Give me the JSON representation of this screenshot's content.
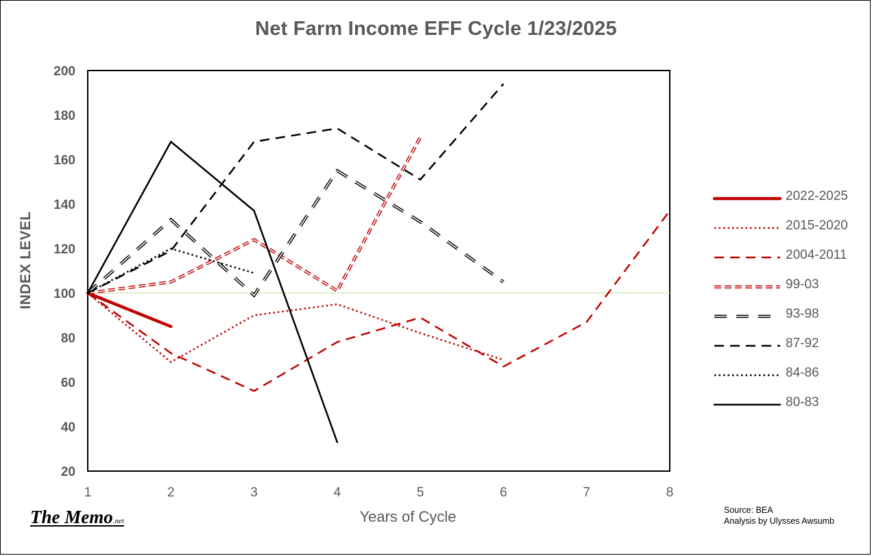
{
  "chart_data": {
    "type": "line",
    "title": "Net Farm Income EFF Cycle 1/23/2025",
    "xlabel": "Years of Cycle",
    "ylabel": "INDEX LEVEL",
    "xlim": [
      1,
      8
    ],
    "ylim": [
      20,
      200
    ],
    "x_ticks": [
      1,
      2,
      3,
      4,
      5,
      6,
      7,
      8
    ],
    "y_ticks": [
      20,
      40,
      60,
      80,
      100,
      120,
      140,
      160,
      180,
      200
    ],
    "grid": false,
    "reference_line": {
      "value": 100,
      "color": "#92d050"
    },
    "legend_position": "right",
    "series": [
      {
        "name": "2022-2025",
        "color": "#c00000",
        "style": "solid-thick",
        "x": [
          1,
          2
        ],
        "values": [
          100,
          85
        ]
      },
      {
        "name": "2015-2020",
        "color": "#c00000",
        "style": "dotted",
        "x": [
          1,
          2,
          3,
          4,
          5,
          6
        ],
        "values": [
          100,
          69,
          90,
          95,
          82,
          70
        ]
      },
      {
        "name": "2004-2011",
        "color": "#c00000",
        "style": "dashed",
        "x": [
          1,
          2,
          3,
          4,
          5,
          6,
          7,
          8
        ],
        "values": [
          100,
          73,
          56,
          78,
          89,
          67,
          87,
          137
        ]
      },
      {
        "name": "99-03",
        "color": "#c00000",
        "style": "double-dash",
        "x": [
          1,
          2,
          3,
          4,
          5
        ],
        "values": [
          100,
          105,
          124,
          101,
          170
        ]
      },
      {
        "name": "93-98",
        "color": "#000000",
        "style": "double-long-dash",
        "x": [
          1,
          2,
          3,
          4,
          5,
          6
        ],
        "values": [
          100,
          133,
          99,
          155,
          132,
          105
        ]
      },
      {
        "name": "87-92",
        "color": "#000000",
        "style": "dashed",
        "x": [
          1,
          2,
          3,
          4,
          5,
          6
        ],
        "values": [
          100,
          119,
          168,
          174,
          151,
          194
        ]
      },
      {
        "name": "84-86",
        "color": "#000000",
        "style": "dotted",
        "x": [
          1,
          2,
          3
        ],
        "values": [
          100,
          120,
          109
        ]
      },
      {
        "name": "80-83",
        "color": "#000000",
        "style": "solid",
        "x": [
          1,
          2,
          3,
          4
        ],
        "values": [
          100,
          168,
          137,
          33
        ]
      }
    ]
  },
  "brand": {
    "name": "The Memo",
    "suffix": ".net"
  },
  "source": {
    "line1": "Source: BEA",
    "line2": "Analysis by Ulysses Awsumb"
  }
}
